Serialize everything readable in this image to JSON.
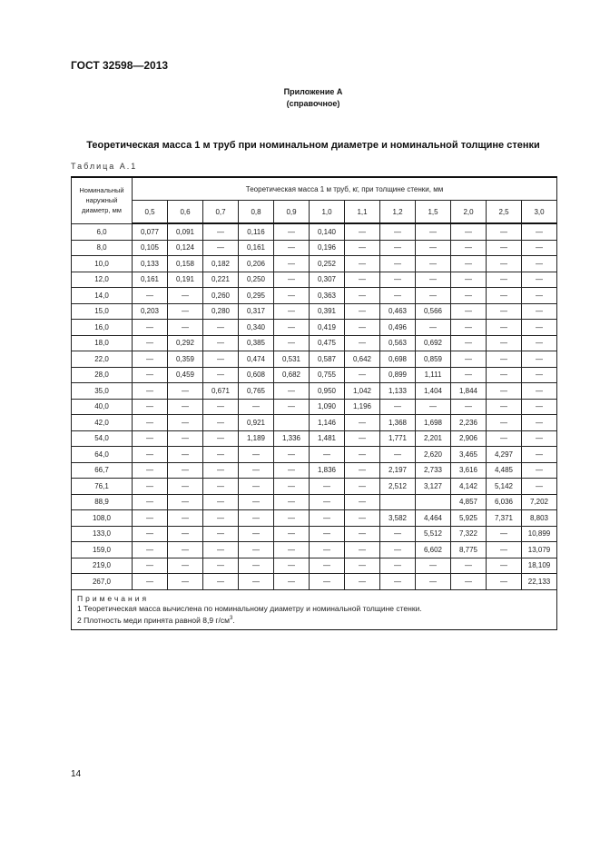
{
  "header": {
    "doc_code": "ГОСТ 32598—2013"
  },
  "appendix": {
    "label": "Приложение А",
    "type": "(справочное)"
  },
  "title": "Теоретическая масса 1 м труб при номинальном диаметре и номинальной толщине стенки",
  "table": {
    "label": "Таблица А.1",
    "first_col_header": "Номинальный наружный диаметр, мм",
    "group_header": "Теоретическая масса 1 м труб, кг, при толщине стенки, мм",
    "thickness": [
      "0,5",
      "0,6",
      "0,7",
      "0,8",
      "0,9",
      "1,0",
      "1,1",
      "1,2",
      "1,5",
      "2,0",
      "2,5",
      "3,0"
    ],
    "rows": [
      [
        "6,0",
        "0,077",
        "0,091",
        "—",
        "0,116",
        "—",
        "0,140",
        "—",
        "—",
        "—",
        "—",
        "—",
        "—"
      ],
      [
        "8,0",
        "0,105",
        "0,124",
        "—",
        "0,161",
        "—",
        "0,196",
        "—",
        "—",
        "—",
        "—",
        "—",
        "—"
      ],
      [
        "10,0",
        "0,133",
        "0,158",
        "0,182",
        "0,206",
        "—",
        "0,252",
        "—",
        "—",
        "—",
        "—",
        "—",
        "—"
      ],
      [
        "12,0",
        "0,161",
        "0,191",
        "0,221",
        "0,250",
        "—",
        "0,307",
        "—",
        "—",
        "—",
        "—",
        "—",
        "—"
      ],
      [
        "14,0",
        "—",
        "—",
        "0,260",
        "0,295",
        "—",
        "0,363",
        "—",
        "—",
        "—",
        "—",
        "—",
        "—"
      ],
      [
        "15,0",
        "0,203",
        "—",
        "0,280",
        "0,317",
        "—",
        "0,391",
        "—",
        "0,463",
        "0,566",
        "—",
        "—",
        "—"
      ],
      [
        "16,0",
        "—",
        "—",
        "—",
        "0,340",
        "—",
        "0,419",
        "—",
        "0,496",
        "—",
        "—",
        "—",
        "—"
      ],
      [
        "18,0",
        "—",
        "0,292",
        "—",
        "0,385",
        "—",
        "0,475",
        "—",
        "0,563",
        "0,692",
        "—",
        "—",
        "—"
      ],
      [
        "22,0",
        "—",
        "0,359",
        "—",
        "0,474",
        "0,531",
        "0,587",
        "0,642",
        "0,698",
        "0,859",
        "—",
        "—",
        "—"
      ],
      [
        "28,0",
        "—",
        "0,459",
        "—",
        "0,608",
        "0,682",
        "0,755",
        "—",
        "0,899",
        "1,111",
        "—",
        "—",
        "—"
      ],
      [
        "35,0",
        "—",
        "—",
        "0,671",
        "0,765",
        "—",
        "0,950",
        "1,042",
        "1,133",
        "1,404",
        "1,844",
        "—",
        "—"
      ],
      [
        "40,0",
        "—",
        "—",
        "—",
        "—",
        "—",
        "1,090",
        "1,196",
        "—",
        "—",
        "—",
        "—",
        "—"
      ],
      [
        "42,0",
        "—",
        "—",
        "—",
        "0,921",
        "",
        "1,146",
        "—",
        "1,368",
        "1,698",
        "2,236",
        "—",
        "—"
      ],
      [
        "54,0",
        "—",
        "—",
        "—",
        "1,189",
        "1,336",
        "1,481",
        "—",
        "1,771",
        "2,201",
        "2,906",
        "—",
        "—"
      ],
      [
        "64,0",
        "—",
        "—",
        "—",
        "—",
        "—",
        "—",
        "—",
        "—",
        "2,620",
        "3,465",
        "4,297",
        "—"
      ],
      [
        "66,7",
        "—",
        "—",
        "—",
        "—",
        "—",
        "1,836",
        "—",
        "2,197",
        "2,733",
        "3,616",
        "4,485",
        "—"
      ],
      [
        "76,1",
        "—",
        "—",
        "—",
        "—",
        "—",
        "—",
        "—",
        "2,512",
        "3,127",
        "4,142",
        "5,142",
        "—"
      ],
      [
        "88,9",
        "—",
        "—",
        "—",
        "—",
        "—",
        "—",
        "—",
        "",
        "",
        "4,857",
        "6,036",
        "7,202"
      ],
      [
        "108,0",
        "—",
        "—",
        "—",
        "—",
        "—",
        "—",
        "—",
        "3,582",
        "4,464",
        "5,925",
        "7,371",
        "8,803"
      ],
      [
        "133,0",
        "—",
        "—",
        "—",
        "—",
        "—",
        "—",
        "—",
        "—",
        "5,512",
        "7,322",
        "—",
        "10,899"
      ],
      [
        "159,0",
        "—",
        "—",
        "—",
        "—",
        "—",
        "—",
        "—",
        "—",
        "6,602",
        "8,775",
        "—",
        "13,079"
      ],
      [
        "219,0",
        "—",
        "—",
        "—",
        "—",
        "—",
        "—",
        "—",
        "—",
        "—",
        "—",
        "—",
        "18,109"
      ],
      [
        "267,0",
        "—",
        "—",
        "—",
        "—",
        "—",
        "—",
        "—",
        "—",
        "—",
        "—",
        "—",
        "22,133"
      ]
    ],
    "notes_title": "Примечания",
    "notes": [
      "1  Теоретическая масса вычислена по номинальному диаметру и номинальной толщине стенки.",
      "2  Плотность меди принята равной 8,9 г/см"
    ],
    "note2_sup": "3",
    "note2_end": "."
  },
  "footer": {
    "page_number": "14"
  }
}
